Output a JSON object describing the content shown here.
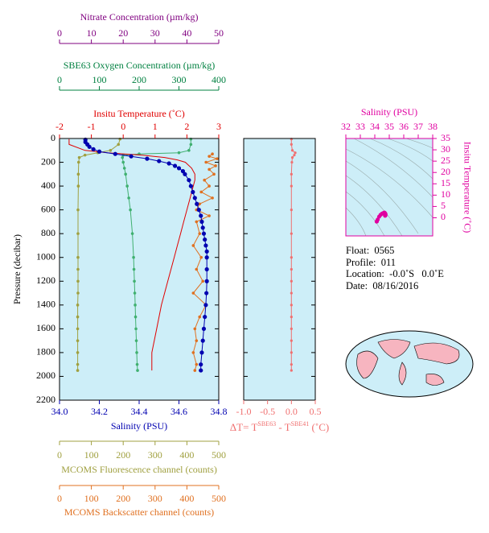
{
  "chart_data": [
    {
      "type": "profile",
      "y_label": "Pressure (decibar)",
      "ylim": [
        2200,
        0
      ],
      "yticks": [
        0,
        200,
        400,
        600,
        800,
        1000,
        1200,
        1400,
        1600,
        1800,
        2000,
        2200
      ],
      "x_axes": {
        "nitrate": {
          "label": "Nitrate Concentration (µm/kg)",
          "color": "#800080",
          "xlim": [
            0,
            50
          ],
          "xticks": [
            0,
            10,
            20,
            30,
            40,
            50
          ]
        },
        "oxygen": {
          "label": "SBE63 Oxygen Concentration (µm/kg)",
          "color": "#008040",
          "xlim": [
            0,
            400
          ],
          "xticks": [
            0,
            100,
            200,
            300,
            400
          ]
        },
        "temperature": {
          "label": "Insitu Temperature (˚C)",
          "color": "#e00000",
          "xlim": [
            -2,
            3
          ],
          "xticks": [
            -2,
            -1,
            0,
            1,
            2,
            3
          ]
        },
        "salinity": {
          "label": "Salinity (PSU)",
          "color": "#0000b0",
          "xlim": [
            34.0,
            34.8
          ],
          "xticks": [
            {
              "value": 34.0,
              "label": "34.0"
            },
            34.2,
            34.4,
            34.6,
            34.8
          ]
        },
        "fluorescence": {
          "label": "MCOMS Fluorescence channel (counts)",
          "color": "#a0a040",
          "xlim": [
            0,
            500
          ],
          "xticks": [
            0,
            100,
            200,
            300,
            400,
            500
          ]
        },
        "backscatter": {
          "label": "MCOMS Backscatter channel (counts)",
          "color": "#e07020",
          "xlim": [
            0,
            500
          ],
          "xticks": [
            0,
            100,
            200,
            300,
            400,
            500
          ]
        }
      },
      "series": [
        {
          "axis": "oxygen",
          "color": "#40b070",
          "line": true,
          "markers": true,
          "y": [
            5,
            50,
            100,
            120,
            130,
            140,
            160,
            200,
            250,
            300,
            400,
            500,
            600,
            800,
            1000,
            1100,
            1200,
            1300,
            1400,
            1500,
            1600,
            1700,
            1800,
            1900,
            1950
          ],
          "values": [
            330,
            330,
            325,
            300,
            200,
            160,
            158,
            160,
            163,
            166,
            170,
            174,
            178,
            183,
            186,
            187,
            188,
            189,
            190,
            191,
            192,
            193,
            194,
            195,
            196
          ]
        },
        {
          "axis": "fluorescence",
          "color": "#a0a040",
          "line": true,
          "markers": true,
          "y": [
            5,
            50,
            100,
            120,
            140,
            160,
            200,
            300,
            400,
            600,
            800,
            1000,
            1100,
            1200,
            1300,
            1400,
            1500,
            1600,
            1700,
            1800,
            1900,
            1950
          ],
          "values": [
            190,
            185,
            160,
            120,
            80,
            62,
            60,
            59,
            59,
            58,
            58,
            58,
            58,
            58,
            58,
            57,
            57,
            57,
            57,
            57,
            57,
            57
          ]
        },
        {
          "axis": "backscatter",
          "color": "#e07020",
          "line": true,
          "markers": true,
          "y": [
            130,
            150,
            170,
            200,
            230,
            260,
            300,
            350,
            400,
            450,
            500,
            550,
            600,
            650,
            700,
            800,
            900,
            1000,
            1100,
            1200,
            1300,
            1400,
            1500,
            1600,
            1700,
            1800,
            1900,
            1950
          ],
          "values": [
            480,
            470,
            495,
            460,
            490,
            470,
            485,
            455,
            470,
            445,
            480,
            440,
            430,
            470,
            430,
            440,
            420,
            445,
            430,
            450,
            420,
            460,
            440,
            425,
            430,
            420,
            430,
            425
          ]
        },
        {
          "axis": "temperature",
          "color": "#e00000",
          "line": true,
          "markers": false,
          "y": [
            5,
            50,
            100,
            120,
            140,
            160,
            180,
            200,
            250,
            300,
            350,
            400,
            500,
            600,
            700,
            800,
            900,
            1000,
            1200,
            1400,
            1600,
            1800,
            1950
          ],
          "values": [
            -1.7,
            -1.7,
            -1.2,
            -0.5,
            0.6,
            1.3,
            1.7,
            1.95,
            2.15,
            2.25,
            2.25,
            2.2,
            2.1,
            2.0,
            1.9,
            1.8,
            1.7,
            1.6,
            1.4,
            1.2,
            1.05,
            0.9,
            0.9
          ]
        },
        {
          "axis": "salinity",
          "color": "#0000b0",
          "line": true,
          "markers": true,
          "y": [
            10,
            30,
            50,
            70,
            90,
            110,
            130,
            150,
            170,
            190,
            210,
            230,
            250,
            275,
            300,
            350,
            400,
            450,
            500,
            550,
            600,
            650,
            700,
            750,
            800,
            850,
            900,
            950,
            1000,
            1100,
            1200,
            1300,
            1400,
            1500,
            1600,
            1700,
            1800,
            1900,
            1950
          ],
          "values": [
            34.13,
            34.13,
            34.14,
            34.15,
            34.17,
            34.2,
            34.28,
            34.36,
            34.44,
            34.5,
            34.55,
            34.58,
            34.6,
            34.62,
            34.63,
            34.65,
            34.66,
            34.67,
            34.68,
            34.69,
            34.7,
            34.71,
            34.715,
            34.72,
            34.725,
            34.73,
            34.735,
            34.74,
            34.74,
            34.74,
            34.74,
            34.738,
            34.735,
            34.73,
            34.725,
            34.72,
            34.715,
            34.71,
            34.71
          ]
        }
      ]
    },
    {
      "type": "profile-difference",
      "xlabel": [
        "ΔT= T",
        "SBE63",
        " - T",
        "SBE41",
        " (˚C)"
      ],
      "color": "#f07070",
      "xlim": [
        -1.0,
        0.5
      ],
      "xticks": [
        {
          "value": -1.0,
          "label": "-1.0"
        },
        -0.5,
        {
          "value": 0.0,
          "label": "0.0"
        },
        0.5
      ],
      "ylim": [
        2200,
        0
      ],
      "yticks": [
        0,
        200,
        400,
        600,
        800,
        1000,
        1200,
        1400,
        1600,
        1800,
        2000,
        2200
      ],
      "y": [
        5,
        50,
        100,
        120,
        140,
        160,
        200,
        300,
        400,
        600,
        800,
        1000,
        1100,
        1200,
        1300,
        1400,
        1500,
        1600,
        1700,
        1800,
        1900,
        1950
      ],
      "values": [
        0.0,
        0.0,
        0.02,
        0.08,
        0.06,
        0.02,
        0.01,
        0.0,
        0.0,
        0.0,
        0.0,
        0.0,
        0.0,
        0.0,
        0.0,
        0.0,
        0.0,
        0.0,
        0.0,
        0.0,
        0.0,
        0.0
      ]
    },
    {
      "type": "scatter",
      "xlabel": "Salinity (PSU)",
      "ylabel": "Insitu Temperature (˚C)",
      "color": "#e000a0",
      "xlim": [
        32,
        38
      ],
      "xticks": [
        32,
        33,
        34,
        35,
        36,
        37,
        38
      ],
      "ylim": [
        -8,
        35
      ],
      "yticks": [
        0,
        5,
        10,
        15,
        20,
        25,
        30,
        35
      ],
      "x": [
        34.13,
        34.14,
        34.2,
        34.3,
        34.4,
        34.5,
        34.6,
        34.65,
        34.68,
        34.7,
        34.72,
        34.74,
        34.74,
        34.73,
        34.71
      ],
      "y": [
        -1.7,
        -1.6,
        -0.8,
        0.5,
        1.3,
        1.8,
        2.1,
        2.25,
        2.2,
        2.05,
        1.9,
        1.6,
        1.3,
        1.0,
        0.9
      ]
    }
  ],
  "info": {
    "lines": [
      "Float:  0565",
      "Profile:  011",
      "Location:  -0.0˚S   0.0˚E",
      "Date:  08/16/2016"
    ]
  }
}
